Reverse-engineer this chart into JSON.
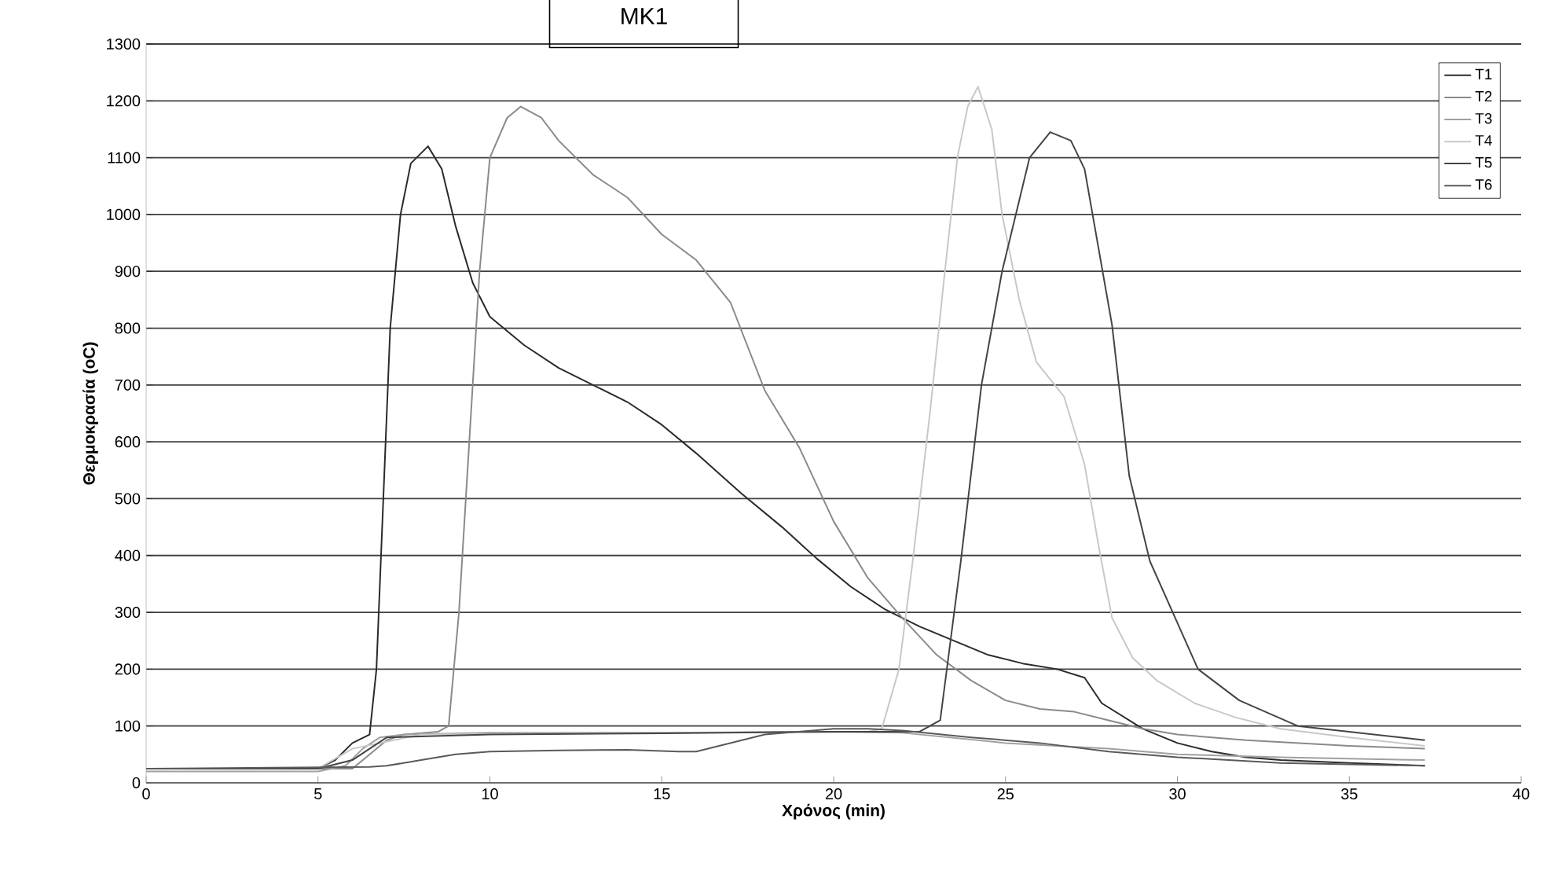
{
  "chart_data": {
    "type": "line",
    "title": "MK1",
    "xlabel": "Χρόνος (min)",
    "ylabel": "Θερμοκρασία (oC)",
    "xlim": [
      0,
      40
    ],
    "xticks": [
      0,
      5,
      10,
      15,
      20,
      25,
      30,
      35,
      40
    ],
    "ylim": [
      0,
      1300
    ],
    "yticks": [
      0,
      100,
      200,
      300,
      400,
      500,
      600,
      700,
      800,
      900,
      1000,
      1100,
      1200,
      1300
    ],
    "grid": "y",
    "legend": "top right",
    "marker": "none",
    "series": [
      {
        "name": "T1",
        "color": "#2a2a2a",
        "x": [
          0,
          5,
          5.5,
          6,
          6.5,
          6.7,
          6.9,
          7.1,
          7.4,
          7.7,
          8.2,
          8.6,
          9.0,
          9.5,
          10,
          11,
          12,
          13,
          14,
          15,
          16,
          17.3,
          18.5,
          19.5,
          20.5,
          21.5,
          22.5,
          23.5,
          24.5,
          25.5,
          26.5,
          27.3,
          27.8,
          29,
          30,
          31,
          32,
          33,
          35,
          37.2
        ],
        "values": [
          25,
          25,
          40,
          70,
          85,
          200,
          500,
          800,
          1000,
          1090,
          1120,
          1080,
          980,
          880,
          820,
          770,
          730,
          700,
          670,
          630,
          580,
          510,
          450,
          395,
          345,
          305,
          275,
          250,
          225,
          210,
          200,
          185,
          140,
          95,
          70,
          55,
          45,
          40,
          35,
          30
        ]
      },
      {
        "name": "T2",
        "color": "#8a8a8a",
        "x": [
          0,
          6,
          6.5,
          7,
          7.5,
          8.5,
          8.8,
          9.1,
          9.4,
          9.7,
          10.0,
          10.5,
          10.9,
          11.5,
          12,
          13,
          14,
          15,
          16,
          17,
          18,
          19,
          20,
          21,
          22,
          23,
          24,
          25,
          26,
          27,
          28,
          29,
          30,
          32,
          35,
          37.2
        ],
        "values": [
          25,
          25,
          50,
          75,
          85,
          90,
          100,
          300,
          600,
          900,
          1100,
          1170,
          1190,
          1170,
          1130,
          1070,
          1030,
          965,
          920,
          845,
          690,
          590,
          460,
          360,
          290,
          225,
          180,
          145,
          130,
          125,
          110,
          95,
          85,
          75,
          65,
          60
        ]
      },
      {
        "name": "T3",
        "color": "#a0a0a0",
        "x": [
          0,
          5,
          5.8,
          6.3,
          6.8,
          7.5,
          10,
          15,
          20,
          22,
          25,
          28,
          30,
          33,
          37.2
        ],
        "values": [
          20,
          20,
          30,
          60,
          80,
          85,
          88,
          88,
          90,
          88,
          70,
          60,
          50,
          45,
          40
        ]
      },
      {
        "name": "T4",
        "color": "#c8c8c8",
        "x": [
          0,
          5,
          6,
          8,
          21,
          21.4,
          21.9,
          22.3,
          22.8,
          23.2,
          23.6,
          23.9,
          24.2,
          24.6,
          24.9,
          25.4,
          25.9,
          26.7,
          27.3,
          27.7,
          28.1,
          28.7,
          29.4,
          30.5,
          31.7,
          33,
          35,
          37.2
        ],
        "values": [
          25,
          25,
          60,
          85,
          90,
          95,
          200,
          390,
          650,
          880,
          1100,
          1190,
          1225,
          1150,
          1000,
          850,
          740,
          680,
          560,
          420,
          290,
          220,
          180,
          140,
          115,
          95,
          80,
          65
        ]
      },
      {
        "name": "T5",
        "color": "#444444",
        "x": [
          0,
          5,
          6,
          7,
          10,
          15,
          20,
          22.5,
          23.1,
          23.7,
          24.3,
          24.9,
          25.7,
          26.3,
          26.9,
          27.3,
          28.1,
          28.6,
          29.2,
          30.6,
          31.8,
          33.5,
          37.2
        ],
        "values": [
          25,
          25,
          40,
          80,
          85,
          87,
          90,
          90,
          110,
          390,
          700,
          900,
          1100,
          1145,
          1130,
          1080,
          805,
          540,
          390,
          200,
          145,
          100,
          75
        ]
      },
      {
        "name": "T6",
        "color": "#5a5a5a",
        "x": [
          0,
          6.5,
          7,
          8,
          9,
          10,
          12,
          14,
          15.5,
          16,
          17,
          18,
          19,
          20,
          21,
          22,
          24,
          26,
          28,
          30,
          33,
          37.2
        ],
        "values": [
          25,
          28,
          30,
          40,
          50,
          55,
          57,
          58,
          55,
          55,
          70,
          85,
          90,
          95,
          95,
          92,
          80,
          70,
          55,
          45,
          35,
          30
        ]
      }
    ]
  }
}
